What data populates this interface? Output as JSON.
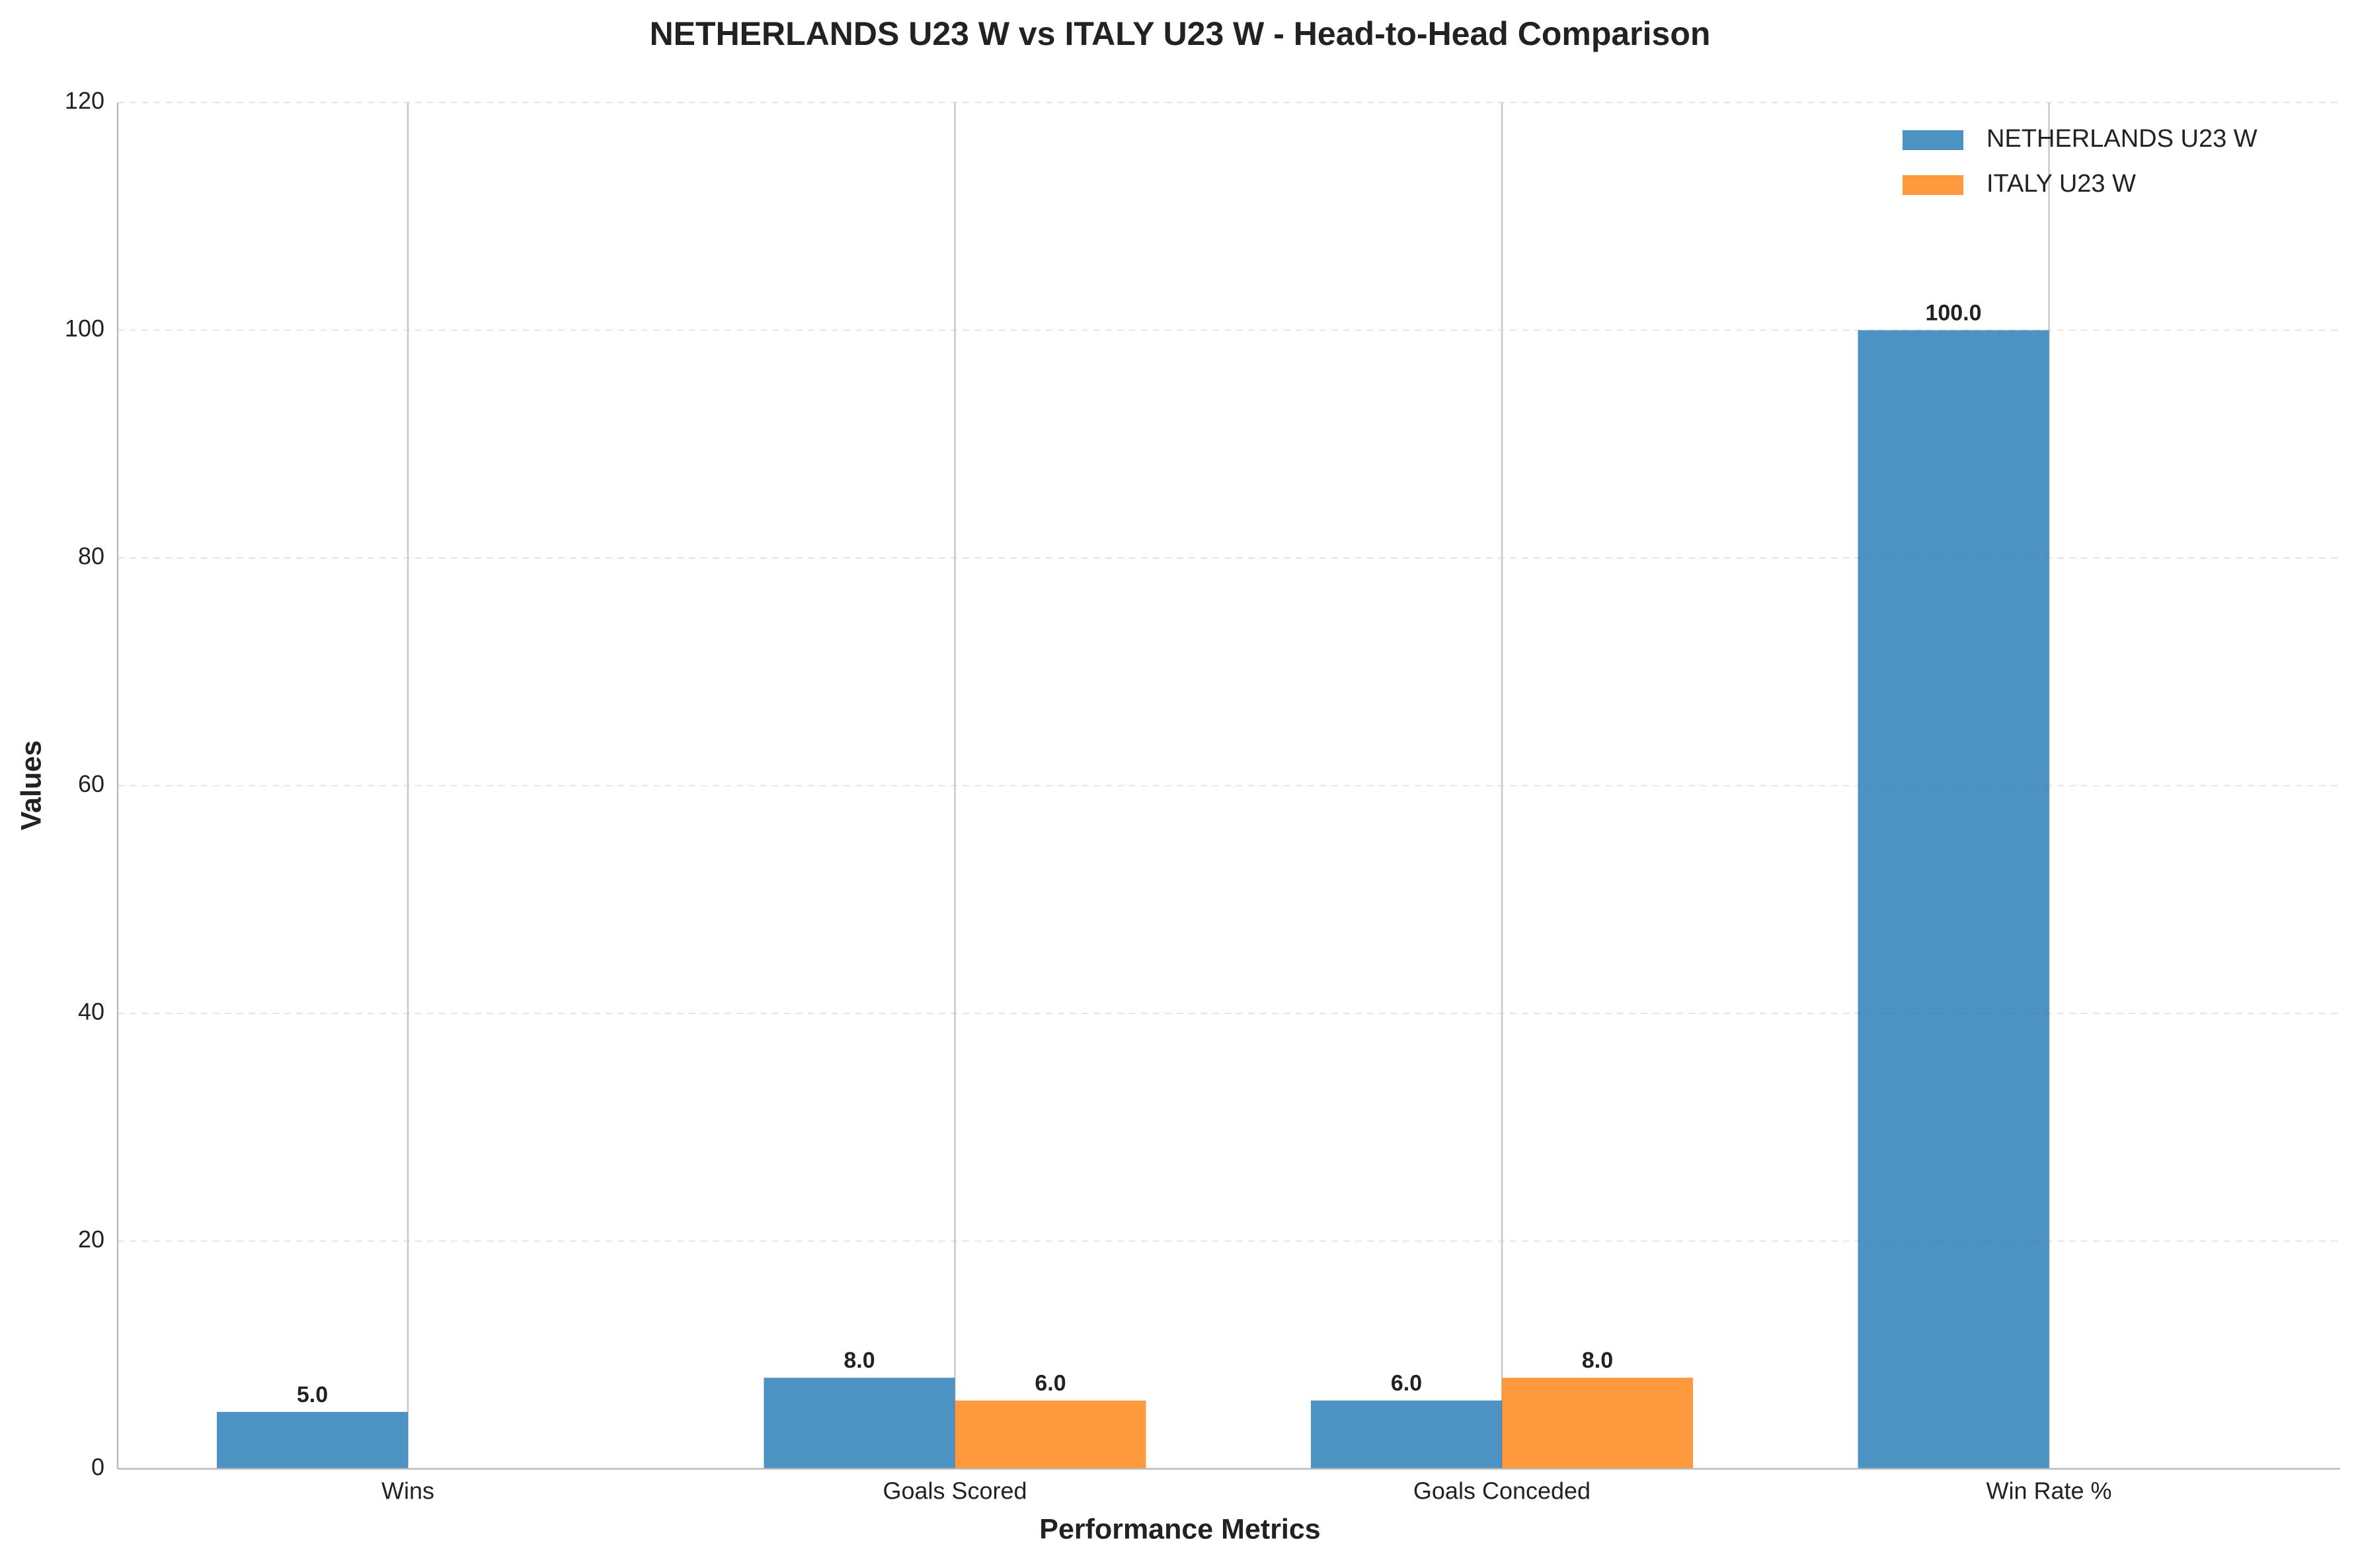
{
  "chart_data": {
    "type": "bar",
    "title": "NETHERLANDS U23 W vs ITALY U23 W - Head-to-Head Comparison",
    "x_label": "Performance Metrics",
    "y_label": "Values",
    "categories": [
      "Wins",
      "Goals Scored",
      "Goals Conceded",
      "Win Rate %"
    ],
    "series": [
      {
        "name": "NETHERLANDS U23 W",
        "color": "#1f77b4",
        "values": [
          5,
          8,
          6,
          100
        ],
        "value_labels": [
          "5.0",
          "8.0",
          "6.0",
          "100.0"
        ]
      },
      {
        "name": "ITALY U23 W",
        "color": "#ff7f0e",
        "values": [
          0,
          6,
          8,
          0
        ],
        "value_labels": [
          null,
          "6.0",
          "8.0",
          null
        ]
      }
    ],
    "ylim": [
      0,
      120
    ],
    "yticks": [
      0,
      20,
      40,
      60,
      80,
      100,
      120
    ],
    "grid": true,
    "legend": "upper right"
  }
}
